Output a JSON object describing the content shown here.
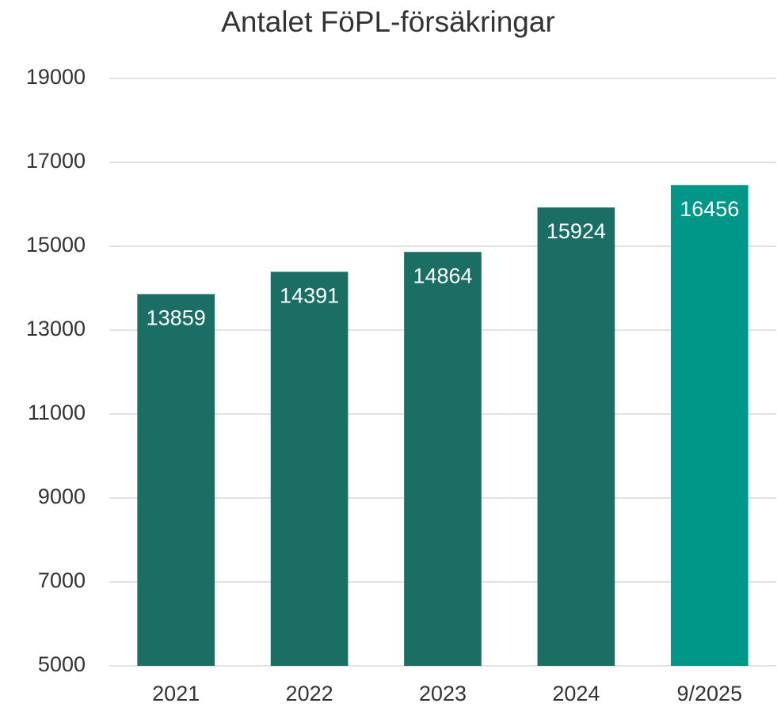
{
  "chart_data": {
    "type": "bar",
    "title": "Antalet FöPL-försäkringar",
    "categories": [
      "2021",
      "2022",
      "2023",
      "2024",
      "9/2025"
    ],
    "values": [
      13859,
      14391,
      14864,
      15924,
      16456
    ],
    "colors": [
      "#1a6e64",
      "#1a6e64",
      "#1a6e64",
      "#1a6e64",
      "#009688"
    ],
    "ylim": [
      5000,
      19000
    ],
    "yticks": [
      5000,
      7000,
      9000,
      11000,
      13000,
      15000,
      17000,
      19000
    ],
    "grid": true
  }
}
